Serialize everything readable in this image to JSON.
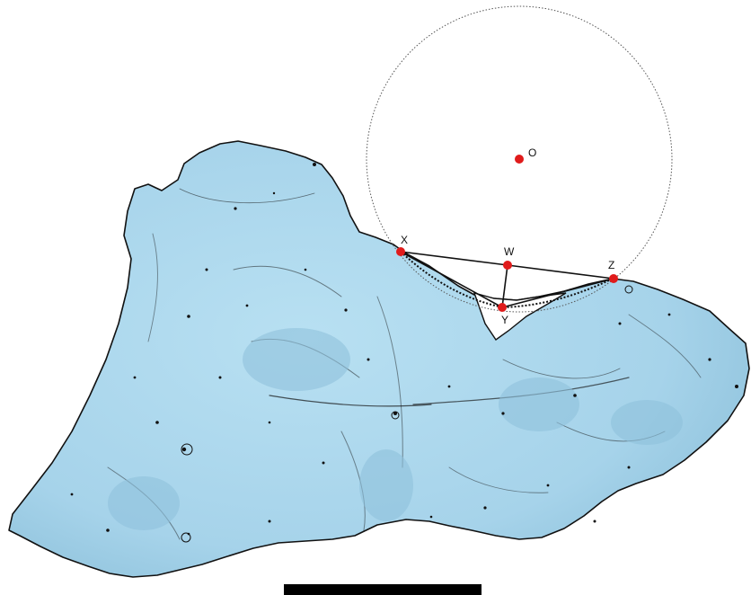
{
  "colors": {
    "background": "#ffffff",
    "bone_fill": "#a9d6ec",
    "bone_shade": "#8fc2dc",
    "bone_outline": "#111111",
    "point": "#e01b1b",
    "construction_line": "#111111",
    "circle": "#555555",
    "scale_bar": "#000000"
  },
  "points": [
    {
      "id": "O",
      "label": "O"
    },
    {
      "id": "X",
      "label": "X"
    },
    {
      "id": "W",
      "label": "W"
    },
    {
      "id": "Z",
      "label": "Z"
    },
    {
      "id": "Y",
      "label": "Y"
    }
  ],
  "segments": [
    {
      "from": "X",
      "to": "W"
    },
    {
      "from": "W",
      "to": "Z"
    },
    {
      "from": "X",
      "to": "Y"
    },
    {
      "from": "Y",
      "to": "Z"
    },
    {
      "from": "W",
      "to": "Y"
    }
  ],
  "circle": {
    "center": "O",
    "style": "dotted"
  },
  "scale_bar": {
    "shown": true
  }
}
